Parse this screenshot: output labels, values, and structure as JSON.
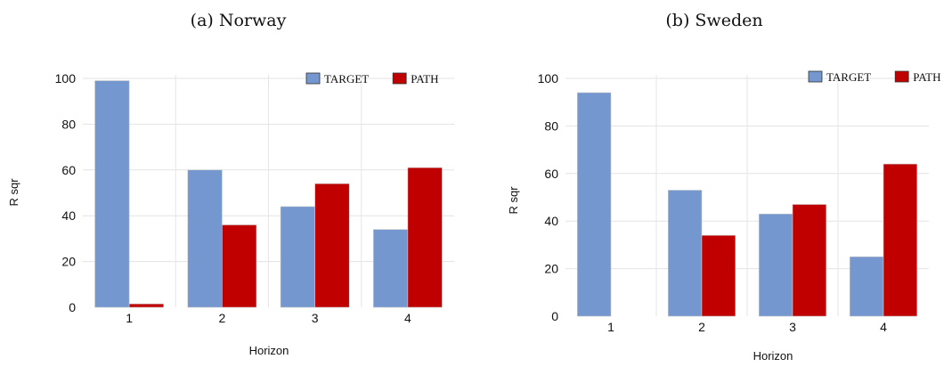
{
  "chart_data": [
    {
      "type": "bar",
      "title": "(a) Norway",
      "xlabel": "Horizon",
      "ylabel": "R sqr",
      "categories": [
        "1",
        "2",
        "3",
        "4"
      ],
      "yticks": [
        0,
        20,
        40,
        60,
        80,
        100
      ],
      "ylim": [
        0,
        100
      ],
      "grid": true,
      "legend_position": "top-right",
      "series": [
        {
          "name": "TARGET",
          "color": "#7597cf",
          "values": [
            99,
            60,
            44,
            34
          ]
        },
        {
          "name": "PATH",
          "color": "#c00000",
          "values": [
            1.5,
            36,
            54,
            61
          ]
        }
      ]
    },
    {
      "type": "bar",
      "title": "(b) Sweden",
      "xlabel": "Horizon",
      "ylabel": "R sqr",
      "categories": [
        "1",
        "2",
        "3",
        "4"
      ],
      "yticks": [
        0,
        20,
        40,
        60,
        80,
        100
      ],
      "ylim": [
        0,
        100
      ],
      "grid": true,
      "legend_position": "top-right",
      "series": [
        {
          "name": "TARGET",
          "color": "#7597cf",
          "values": [
            94,
            53,
            43,
            25
          ]
        },
        {
          "name": "PATH",
          "color": "#c00000",
          "values": [
            0,
            34,
            47,
            64
          ]
        }
      ]
    }
  ]
}
